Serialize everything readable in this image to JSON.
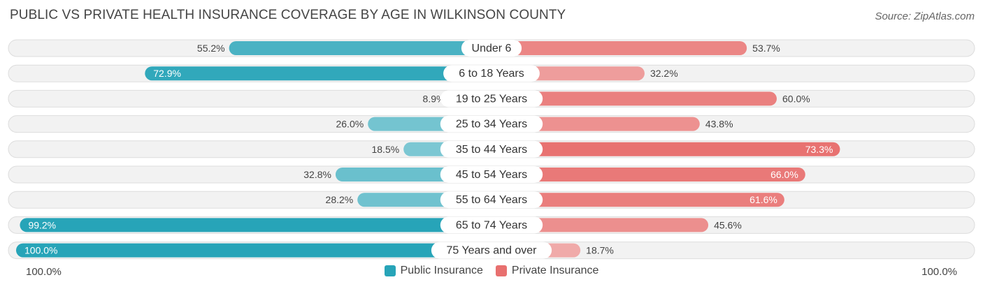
{
  "title": "PUBLIC VS PRIVATE HEALTH INSURANCE COVERAGE BY AGE IN WILKINSON COUNTY",
  "source": "Source: ZipAtlas.com",
  "axis_left_label": "100.0%",
  "axis_right_label": "100.0%",
  "legend": {
    "public": "Public Insurance",
    "private": "Private Insurance"
  },
  "colors": {
    "public_strong": "#27a4b8",
    "public_light": "#7cc7d3",
    "private_strong": "#e8706f",
    "private_light": "#f0aaa9",
    "row_background": "#f2f2f2",
    "row_border": "#dddddd"
  },
  "chart_data": {
    "type": "bar",
    "orientation": "horizontal-diverging",
    "categories": [
      "Under 6",
      "6 to 18 Years",
      "19 to 25 Years",
      "25 to 34 Years",
      "35 to 44 Years",
      "45 to 54 Years",
      "55 to 64 Years",
      "65 to 74 Years",
      "75 Years and over"
    ],
    "series": [
      {
        "name": "Public Insurance",
        "values": [
          55.2,
          72.9,
          8.9,
          26.0,
          18.5,
          32.8,
          28.2,
          99.2,
          100.0
        ],
        "labels": [
          "55.2%",
          "72.9%",
          "8.9%",
          "26.0%",
          "18.5%",
          "32.8%",
          "28.2%",
          "99.2%",
          "100.0%"
        ]
      },
      {
        "name": "Private Insurance",
        "values": [
          53.7,
          32.2,
          60.0,
          43.8,
          73.3,
          66.0,
          61.6,
          45.6,
          18.7
        ],
        "labels": [
          "53.7%",
          "32.2%",
          "60.0%",
          "43.8%",
          "73.3%",
          "66.0%",
          "61.6%",
          "45.6%",
          "18.7%"
        ]
      }
    ],
    "xlim": [
      -100,
      100
    ],
    "legend_position": "bottom-center"
  }
}
